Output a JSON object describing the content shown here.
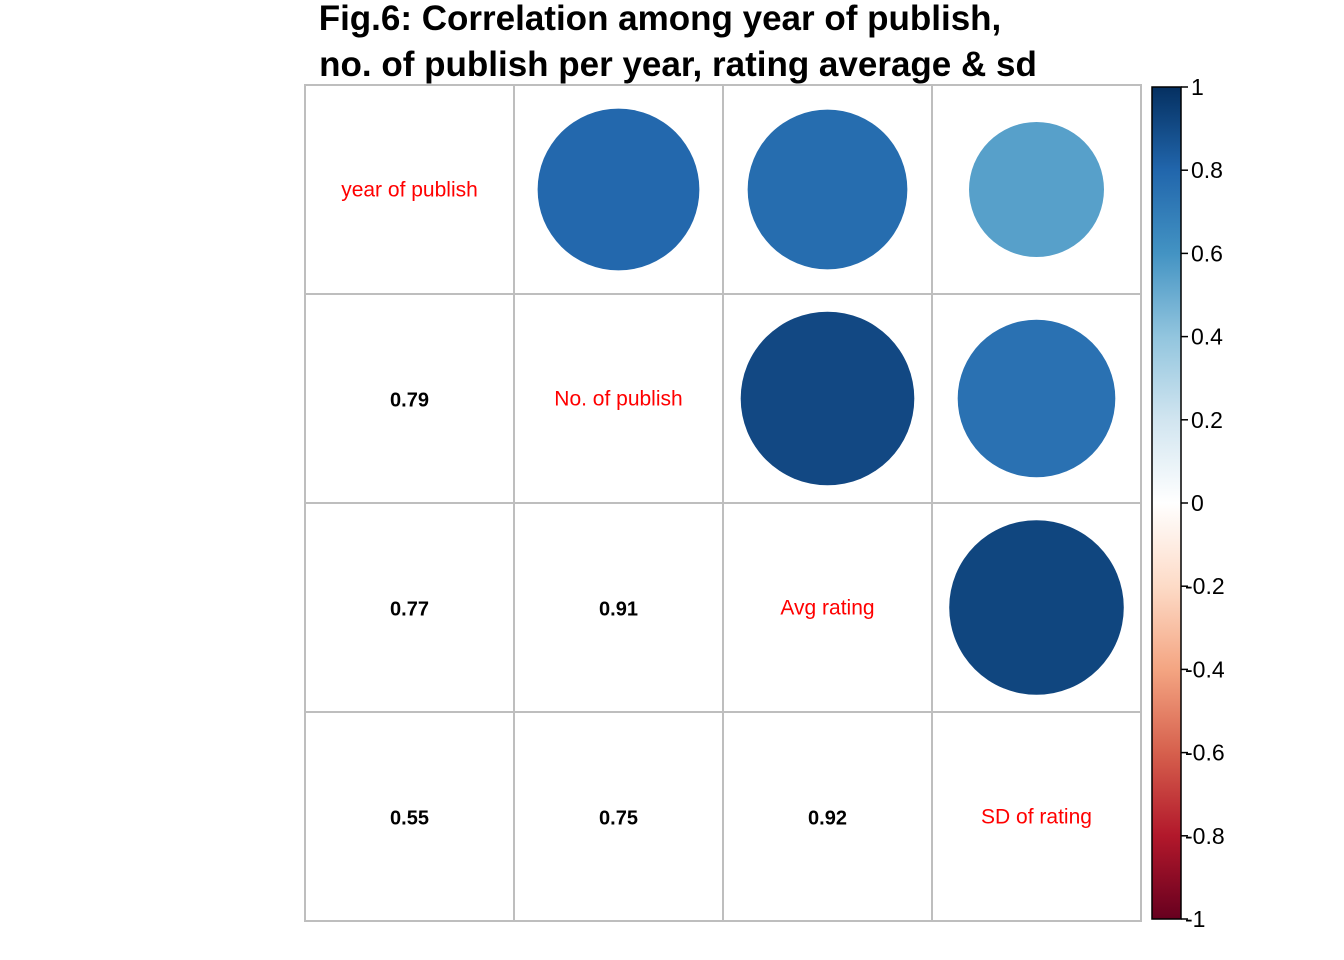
{
  "chart_data": {
    "type": "heatmap",
    "subtype": "correlation-matrix",
    "title_lines": [
      "Fig.6: Correlation among year of publish,",
      "no. of publish per year, rating average & sd"
    ],
    "variables": [
      "year of publish",
      "No. of publish",
      "Avg rating",
      "SD of rating"
    ],
    "matrix": [
      [
        1.0,
        0.79,
        0.77,
        0.55
      ],
      [
        0.79,
        1.0,
        0.91,
        0.75
      ],
      [
        0.77,
        0.91,
        1.0,
        0.92
      ],
      [
        0.55,
        0.75,
        0.92,
        1.0
      ]
    ],
    "lower_display": "number",
    "upper_display": "circle",
    "diagonal_display": "label",
    "coef_labels": {
      "r1c0": "0.79",
      "r2c0": "0.77",
      "r2c1": "0.91",
      "r3c0": "0.55",
      "r3c1": "0.75",
      "r3c2": "0.92"
    },
    "colorbar": {
      "range": [
        -1,
        1
      ],
      "ticks": [
        "1",
        "0.8",
        "0.6",
        "0.4",
        "0.2",
        "0",
        "-0.2",
        "-0.4",
        "-0.6",
        "-0.8",
        "-1"
      ],
      "tick_values": [
        1,
        0.8,
        0.6,
        0.4,
        0.2,
        0,
        -0.2,
        -0.4,
        -0.6,
        -0.8,
        -1
      ],
      "palette": [
        "#67001F",
        "#B2182B",
        "#D6604D",
        "#F4A582",
        "#FDDBC7",
        "#FFFFFF",
        "#D1E5F0",
        "#92C5DE",
        "#4393C3",
        "#2166AC",
        "#053061"
      ],
      "position": "right"
    },
    "colors": {
      "diagonal_label": "#ff0000",
      "coef_text": "#000000",
      "grid": "#bebebe"
    }
  }
}
